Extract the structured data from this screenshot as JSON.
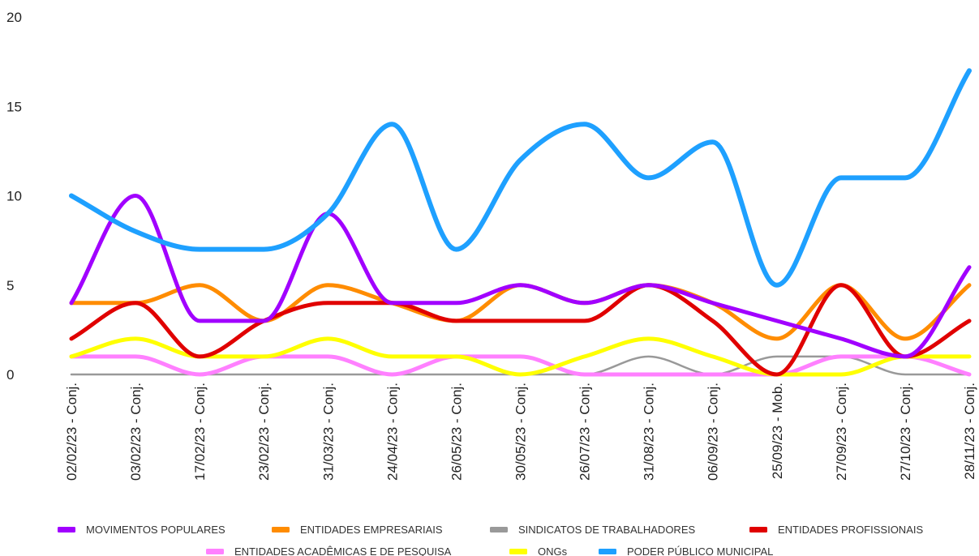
{
  "chart_data": {
    "type": "line",
    "title": "",
    "xlabel": "",
    "ylabel": "",
    "ylim": [
      0,
      20
    ],
    "yticks": [
      0,
      5,
      10,
      15,
      20
    ],
    "grid": false,
    "legend_position": "bottom",
    "categories": [
      "02/02/23 - Conj.",
      "03/02/23 - Conj.",
      "17/02/23 - Conj.",
      "23/02/23 - Conj.",
      "31/03/23 - Conj.",
      "24/04/23 - Conj.",
      "26/05/23 - Conj.",
      "30/05/23 - Conj.",
      "26/07/23 - Conj.",
      "31/08/23 - Conj.",
      "06/09/23 - Conj.",
      "25/09/23 - Mob.",
      "27/09/23 - Conj.",
      "27/10/23 - Conj.",
      "28/11/23 - Conj."
    ],
    "series": [
      {
        "name": "MOVIMENTOS POPULARES",
        "color": "#a100ff",
        "values": [
          4,
          10,
          3,
          3,
          9,
          4,
          4,
          5,
          4,
          5,
          4,
          3,
          2,
          1,
          6
        ]
      },
      {
        "name": "ENTIDADES EMPRESARIAIS",
        "color": "#ff8c00",
        "values": [
          4,
          4,
          5,
          3,
          5,
          4,
          3,
          5,
          4,
          5,
          4,
          2,
          5,
          2,
          5
        ]
      },
      {
        "name": "SINDICATOS DE TRABALHADORES",
        "color": "#999999",
        "values": [
          0,
          0,
          0,
          0,
          0,
          0,
          0,
          0,
          0,
          1,
          0,
          1,
          1,
          0,
          0
        ]
      },
      {
        "name": "ENTIDADES PROFISSIONAIS",
        "color": "#e00000",
        "values": [
          2,
          4,
          1,
          3,
          4,
          4,
          3,
          3,
          3,
          5,
          3,
          0,
          5,
          1,
          3
        ]
      },
      {
        "name": "ENTIDADES ACADÊMICAS E DE PESQUISA",
        "color": "#ff80ff",
        "values": [
          1,
          1,
          0,
          1,
          1,
          0,
          1,
          1,
          0,
          0,
          0,
          0,
          1,
          1,
          0
        ]
      },
      {
        "name": "ONGs",
        "color": "#ffff00",
        "values": [
          1,
          2,
          1,
          1,
          2,
          1,
          1,
          0,
          1,
          2,
          1,
          0,
          0,
          1,
          1
        ]
      },
      {
        "name": "PODER PÚBLICO MUNICIPAL",
        "color": "#1ea0ff",
        "values": [
          10,
          8,
          7,
          7,
          9,
          14,
          7,
          12,
          14,
          11,
          13,
          5,
          11,
          11,
          17
        ]
      }
    ]
  }
}
